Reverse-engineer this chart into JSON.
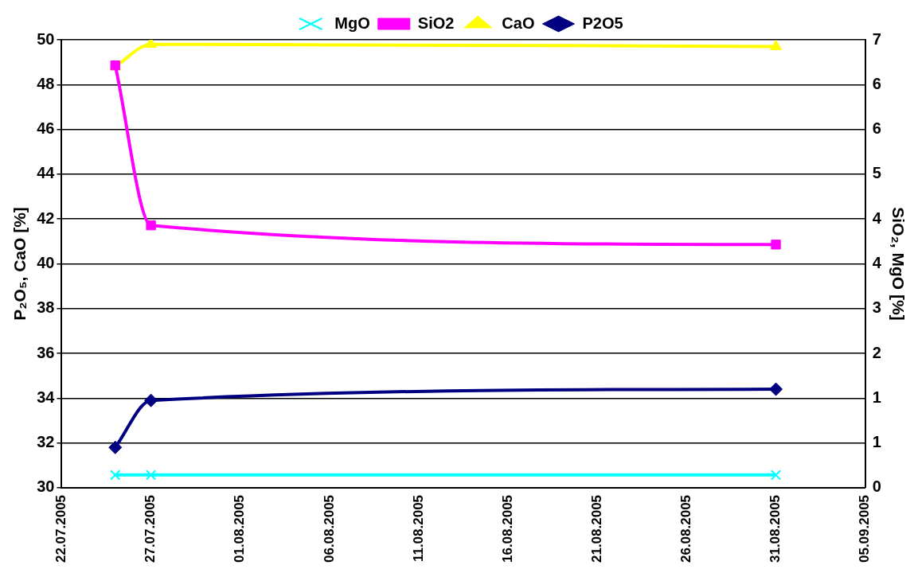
{
  "chart_data": {
    "type": "line",
    "ylabel": "P₂O₅, CaO [%]",
    "y2label": "SiO₂, MgO [%]",
    "x": [
      "2005-07-25",
      "2005-07-27",
      "2005-08-31"
    ],
    "xlim": [
      "2005-07-22",
      "2005-09-05"
    ],
    "xticks": [
      {
        "value": "2005-07-22",
        "label": "22.07.2005"
      },
      {
        "value": "2005-07-27",
        "label": "27.07.2005"
      },
      {
        "value": "2005-08-01",
        "label": "01.08.2005"
      },
      {
        "value": "2005-08-06",
        "label": "06.08.2005"
      },
      {
        "value": "2005-08-11",
        "label": "11.08.2005"
      },
      {
        "value": "2005-08-16",
        "label": "16.08.2005"
      },
      {
        "value": "2005-08-21",
        "label": "21.08.2005"
      },
      {
        "value": "2005-08-26",
        "label": "26.08.2005"
      },
      {
        "value": "2005-08-31",
        "label": "31.08.2005"
      },
      {
        "value": "2005-09-05",
        "label": "05.09.2005"
      }
    ],
    "ylim": [
      30,
      50
    ],
    "yticks": [
      30,
      32,
      34,
      36,
      38,
      40,
      42,
      44,
      46,
      48,
      50
    ],
    "y2lim": [
      0,
      7
    ],
    "y2ticks": [
      {
        "value": 0,
        "label": "0"
      },
      {
        "value": 0.7,
        "label": "1"
      },
      {
        "value": 1.4,
        "label": "1"
      },
      {
        "value": 2.1,
        "label": "2"
      },
      {
        "value": 2.8,
        "label": "3"
      },
      {
        "value": 3.5,
        "label": "4"
      },
      {
        "value": 4.2,
        "label": "4"
      },
      {
        "value": 4.9,
        "label": "5"
      },
      {
        "value": 5.6,
        "label": "6"
      },
      {
        "value": 6.3,
        "label": "6"
      },
      {
        "value": 7,
        "label": "7"
      }
    ],
    "series": [
      {
        "name": "P2O5",
        "color": "#000080",
        "marker": "diamond",
        "values": [
          31.8,
          33.9,
          34.4
        ]
      },
      {
        "name": "CaO",
        "color": "#ffff00",
        "marker": "triangle",
        "values": [
          48.8,
          49.8,
          49.7
        ]
      },
      {
        "name": "SiO2",
        "color": "#ff00ff",
        "marker": "square",
        "axis": "y2",
        "values": [
          6.6,
          4.1,
          3.8
        ]
      },
      {
        "name": "MgO",
        "color": "#00ffff",
        "marker": "cross",
        "axis": "y2",
        "values": [
          0.2,
          0.2,
          0.2
        ]
      }
    ],
    "grid": "y",
    "legend": "top",
    "line_style": "solid"
  }
}
